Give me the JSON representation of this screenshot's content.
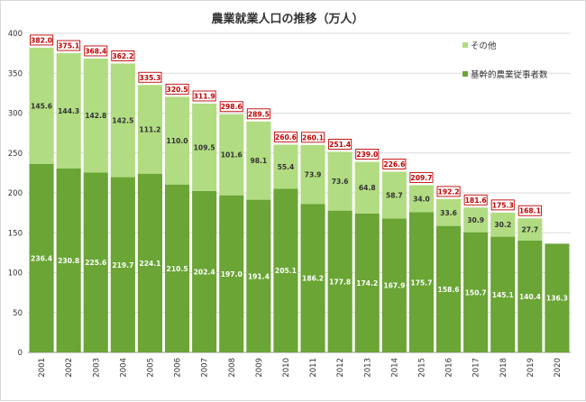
{
  "chart_data": {
    "type": "bar",
    "stacked": true,
    "title": "農業就業人口の推移（万人）",
    "categories": [
      "2001",
      "2002",
      "2003",
      "2004",
      "2005",
      "2006",
      "2007",
      "2008",
      "2009",
      "2010",
      "2011",
      "2012",
      "2013",
      "2014",
      "2015",
      "2016",
      "2017",
      "2018",
      "2019",
      "2020"
    ],
    "series": [
      {
        "name": "基幹的農業従事者数",
        "color": "#6aa535",
        "values": [
          236.4,
          230.8,
          225.6,
          219.7,
          224.1,
          210.5,
          202.4,
          197.0,
          191.4,
          205.1,
          186.2,
          177.8,
          174.2,
          167.9,
          175.7,
          158.6,
          150.7,
          145.1,
          140.4,
          136.3
        ]
      },
      {
        "name": "その他",
        "color": "#b1dc82",
        "values": [
          145.6,
          144.3,
          142.8,
          142.5,
          111.2,
          110.0,
          109.5,
          101.6,
          98.1,
          55.4,
          73.9,
          73.6,
          64.8,
          58.7,
          34.0,
          33.6,
          30.9,
          30.2,
          27.7,
          null
        ]
      }
    ],
    "totals": [
      382.0,
      375.1,
      368.4,
      362.2,
      335.3,
      320.5,
      311.9,
      298.6,
      289.5,
      260.6,
      260.1,
      251.4,
      239.0,
      226.6,
      209.7,
      192.2,
      181.6,
      175.3,
      168.1,
      null
    ],
    "ylim": [
      0,
      400
    ],
    "yticks": [
      0,
      50,
      100,
      150,
      200,
      250,
      300,
      350,
      400
    ],
    "grid": true,
    "legend_position": "top-right",
    "total_label_color": "#c00000"
  }
}
